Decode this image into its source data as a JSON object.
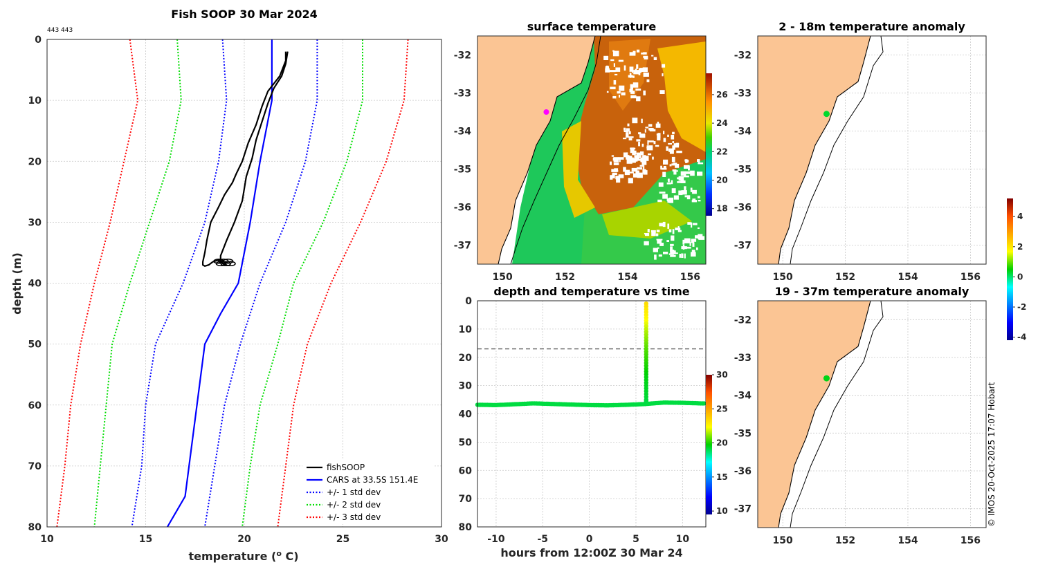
{
  "chart_data": [
    {
      "type": "line",
      "title": "Fish SOOP 30 Mar 2024",
      "subtitle": "443 443",
      "xlabel": "temperature (",
      "xlabel_sup": "o",
      "xlabel_end": " C)",
      "ylabel": "depth (m)",
      "xlim": [
        10,
        30
      ],
      "ylim": [
        0,
        80
      ],
      "xticks": [
        10,
        15,
        20,
        25,
        30
      ],
      "yticks": [
        0,
        10,
        20,
        30,
        40,
        50,
        60,
        70,
        80
      ],
      "grid": true,
      "legend_position": "bottom-right",
      "series": [
        {
          "name": "fishSOOP",
          "color": "#000000",
          "style": "solid",
          "temperature": [
            22.1,
            22.1,
            21.8,
            21.2,
            20.9,
            20.6,
            20.2,
            19.9,
            19.6,
            19.4,
            19.0,
            18.7,
            18.3,
            18.1,
            18.0,
            17.9,
            17.9,
            18.0,
            18.2,
            18.4,
            18.7,
            19.1,
            19.0,
            18.8,
            18.8,
            19.1,
            19.5,
            19.9,
            20.1,
            20.4,
            20.6,
            20.9,
            21.2,
            21.5,
            21.9,
            22.1,
            22.2
          ],
          "depth": [
            2.0,
            3.5,
            6.0,
            8.5,
            11.0,
            14.0,
            17.0,
            20.0,
            22.0,
            23.5,
            25.5,
            27.5,
            30.0,
            33.0,
            35.0,
            36.5,
            37.0,
            37.2,
            37.0,
            36.5,
            36.2,
            36.6,
            37.0,
            36.5,
            35.5,
            33.0,
            30.0,
            26.5,
            22.5,
            19.5,
            16.5,
            13.5,
            10.5,
            8.0,
            6.0,
            4.0,
            2.0
          ]
        },
        {
          "name": "CARS at 33.5S 151.4E",
          "color": "#0000ff",
          "style": "solid",
          "temperature": [
            21.4,
            21.4,
            20.8,
            20.3,
            19.7,
            18.8,
            18.0,
            17.6,
            17.2,
            17.0,
            16.1
          ],
          "depth": [
            0,
            10,
            20,
            30,
            40,
            45,
            50,
            60,
            70,
            75,
            80
          ]
        },
        {
          "name": "+/- 1 std dev",
          "color": "#0000ff",
          "style": "dotted",
          "temperature": [
            18.9,
            19.1,
            18.7,
            18.0,
            16.9,
            15.5,
            15.0,
            14.8,
            14.3
          ],
          "depth": [
            0,
            10,
            20,
            30,
            40,
            50,
            60,
            70,
            80
          ]
        },
        {
          "name": "+/- 1 std dev",
          "color": "#0000ff",
          "style": "dotted",
          "temperature": [
            23.7,
            23.7,
            23.1,
            22.1,
            20.8,
            19.8,
            19.0,
            18.5,
            18.0
          ],
          "depth": [
            0,
            10,
            20,
            30,
            40,
            50,
            60,
            70,
            80
          ]
        },
        {
          "name": "+/- 2 std dev",
          "color": "#00dd00",
          "style": "dotted",
          "temperature": [
            16.6,
            16.8,
            16.2,
            15.2,
            14.2,
            13.3,
            13.0,
            12.7,
            12.4
          ],
          "depth": [
            0,
            10,
            20,
            30,
            40,
            50,
            60,
            70,
            80
          ]
        },
        {
          "name": "+/- 2 std dev",
          "color": "#00dd00",
          "style": "dotted",
          "temperature": [
            26.0,
            26.0,
            25.2,
            24.0,
            22.5,
            21.7,
            20.8,
            20.3,
            19.9
          ],
          "depth": [
            0,
            10,
            20,
            30,
            40,
            50,
            60,
            70,
            80
          ]
        },
        {
          "name": "+/- 3 std dev",
          "color": "#ff0000",
          "style": "dotted",
          "temperature": [
            14.2,
            14.6,
            13.9,
            13.2,
            12.4,
            11.7,
            11.2,
            10.9,
            10.5
          ],
          "depth": [
            0,
            10,
            20,
            30,
            40,
            50,
            60,
            70,
            80
          ]
        },
        {
          "name": "+/- 3 std dev",
          "color": "#ff0000",
          "style": "dotted",
          "temperature": [
            28.3,
            28.1,
            27.2,
            25.9,
            24.4,
            23.2,
            22.5,
            22.1,
            21.7
          ],
          "depth": [
            0,
            10,
            20,
            30,
            40,
            50,
            60,
            70,
            80
          ]
        }
      ],
      "legend": [
        {
          "label": "fishSOOP",
          "color": "#000000",
          "style": "solid"
        },
        {
          "label": "CARS at 33.5S 151.4E",
          "color": "#0000ff",
          "style": "solid"
        },
        {
          "label": "+/- 1 std dev",
          "color": "#0000ff",
          "style": "dotted"
        },
        {
          "label": "+/- 2 std dev",
          "color": "#00dd00",
          "style": "dotted"
        },
        {
          "label": "+/- 3 std dev",
          "color": "#ff0000",
          "style": "dotted"
        }
      ]
    },
    {
      "type": "heatmap",
      "title": "surface temperature",
      "xlim": [
        149.2,
        156.5
      ],
      "ylim": [
        -37.5,
        -31.5
      ],
      "xticks": [
        150,
        152,
        154,
        156
      ],
      "yticks": [
        -32,
        -33,
        -34,
        -35,
        -36,
        -37
      ],
      "colorbar": {
        "min": 17.5,
        "max": 27.5,
        "ticks": [
          18,
          20,
          22,
          24,
          26
        ]
      },
      "marker": {
        "lon": 151.4,
        "lat": -33.5,
        "color": "#ff00ff"
      }
    },
    {
      "type": "scatter",
      "title": "depth and temperature vs time",
      "xlabel": "hours from 12:00Z 30 Mar 24",
      "xlim": [
        -12,
        12.5
      ],
      "ylim": [
        0,
        80
      ],
      "xticks": [
        -10,
        -5,
        0,
        5,
        10
      ],
      "yticks": [
        0,
        10,
        20,
        30,
        40,
        50,
        60,
        70,
        80
      ],
      "reference_depth": 17,
      "colorbar": {
        "min": 9.5,
        "max": 30,
        "ticks": [
          10,
          15,
          20,
          25,
          30
        ]
      },
      "bottom_track": {
        "hours": [
          -12,
          -10,
          -8,
          -6,
          -4,
          -2,
          0,
          2,
          4,
          6.1,
          8,
          10,
          12
        ],
        "depth": [
          36.8,
          36.9,
          36.6,
          36.3,
          36.5,
          36.7,
          36.9,
          37.0,
          36.8,
          36.5,
          36.0,
          36.1,
          36.3
        ],
        "temperature": [
          19.1,
          19.1,
          19.1,
          19.1,
          19.1,
          19.1,
          19.1,
          19.1,
          19.1,
          19.1,
          19.1,
          19.1,
          19.1
        ]
      },
      "cast": {
        "hours": 6.1,
        "depth": [
          1,
          3,
          5,
          7,
          9,
          11,
          13,
          15,
          17,
          19,
          21,
          23,
          25,
          27,
          29,
          31,
          33,
          35,
          36
        ],
        "temperature": [
          23.3,
          23.0,
          22.7,
          22.3,
          21.9,
          21.5,
          21.2,
          20.9,
          20.6,
          20.4,
          20.2,
          20.0,
          19.8,
          19.6,
          19.5,
          19.4,
          19.3,
          19.2,
          19.1
        ]
      }
    },
    {
      "type": "heatmap",
      "title": "2 - 18m temperature anomaly",
      "xlim": [
        149.2,
        156.5
      ],
      "ylim": [
        -37.5,
        -31.5
      ],
      "xticks": [
        150,
        152,
        154,
        156
      ],
      "yticks": [
        -32,
        -33,
        -34,
        -35,
        -36,
        -37
      ],
      "marker": {
        "lon": 151.4,
        "lat": -33.55,
        "anomaly": 0.3
      }
    },
    {
      "type": "heatmap",
      "title": "19 - 37m temperature anomaly",
      "xlim": [
        149.2,
        156.5
      ],
      "ylim": [
        -37.5,
        -31.5
      ],
      "xticks": [
        150,
        152,
        154,
        156
      ],
      "yticks": [
        -32,
        -33,
        -34,
        -35,
        -36,
        -37
      ],
      "marker": {
        "lon": 151.4,
        "lat": -33.55,
        "anomaly": 0.4
      },
      "colorbar": {
        "min": -4.2,
        "max": 5.2,
        "ticks": [
          -4,
          -2,
          0,
          2,
          4
        ]
      }
    }
  ],
  "credit": "© IMOS 20-Oct-2025 17:07 Hobart"
}
